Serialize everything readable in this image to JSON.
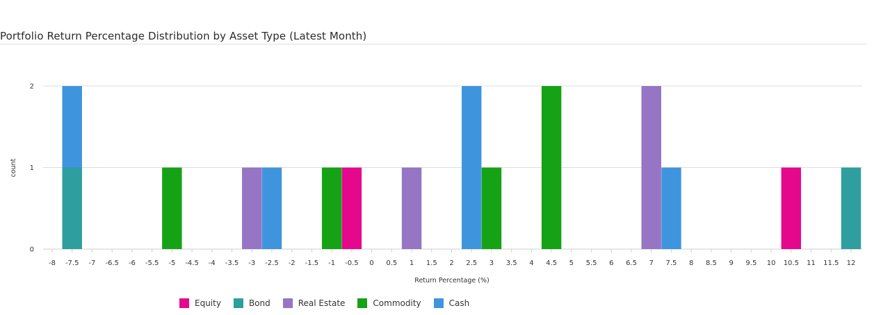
{
  "chart_data": {
    "type": "bar",
    "title": "Portfolio Return Percentage Distribution by Asset Type (Latest Month)",
    "xlabel": "Return Percentage (%)",
    "ylabel": "count",
    "x_ticks": [
      "-8",
      "-7.5",
      "-7",
      "-6.5",
      "-6",
      "-5.5",
      "-5",
      "-4.5",
      "-4",
      "-3.5",
      "-3",
      "-2.5",
      "-2",
      "-1.5",
      "-1",
      "-0.5",
      "0",
      "0.5",
      "1",
      "1.5",
      "2",
      "2.5",
      "3",
      "3.5",
      "4",
      "4.5",
      "5",
      "5.5",
      "6",
      "6.5",
      "7",
      "7.5",
      "8",
      "8.5",
      "9",
      "9.5",
      "10",
      "10.5",
      "11",
      "11.5",
      "12"
    ],
    "x_range": [
      -8,
      12
    ],
    "bin_width": 0.5,
    "y_ticks": [
      "0",
      "1",
      "2"
    ],
    "ylim": [
      0,
      2
    ],
    "grid": true,
    "legend_position": "bottom",
    "series": [
      {
        "name": "Equity",
        "color": "#e5088c",
        "bins": [
          {
            "x": -0.5,
            "count": 1
          },
          {
            "x": 10.5,
            "count": 1
          }
        ]
      },
      {
        "name": "Bond",
        "color": "#2e9e9e",
        "bins": [
          {
            "x": -7.5,
            "count": 1
          },
          {
            "x": 12,
            "count": 1
          }
        ]
      },
      {
        "name": "Real Estate",
        "color": "#9575c4",
        "bins": [
          {
            "x": -3,
            "count": 1
          },
          {
            "x": 1,
            "count": 1
          },
          {
            "x": 7,
            "count": 2
          }
        ]
      },
      {
        "name": "Commodity",
        "color": "#15a215",
        "bins": [
          {
            "x": -5,
            "count": 1
          },
          {
            "x": -1,
            "count": 1
          },
          {
            "x": 3,
            "count": 1
          },
          {
            "x": 4.5,
            "count": 2
          }
        ]
      },
      {
        "name": "Cash",
        "color": "#3e95de",
        "bins": [
          {
            "x": -7.5,
            "count": 1
          },
          {
            "x": -2.5,
            "count": 1
          },
          {
            "x": 2.5,
            "count": 2
          },
          {
            "x": 7.5,
            "count": 1
          }
        ]
      }
    ]
  }
}
